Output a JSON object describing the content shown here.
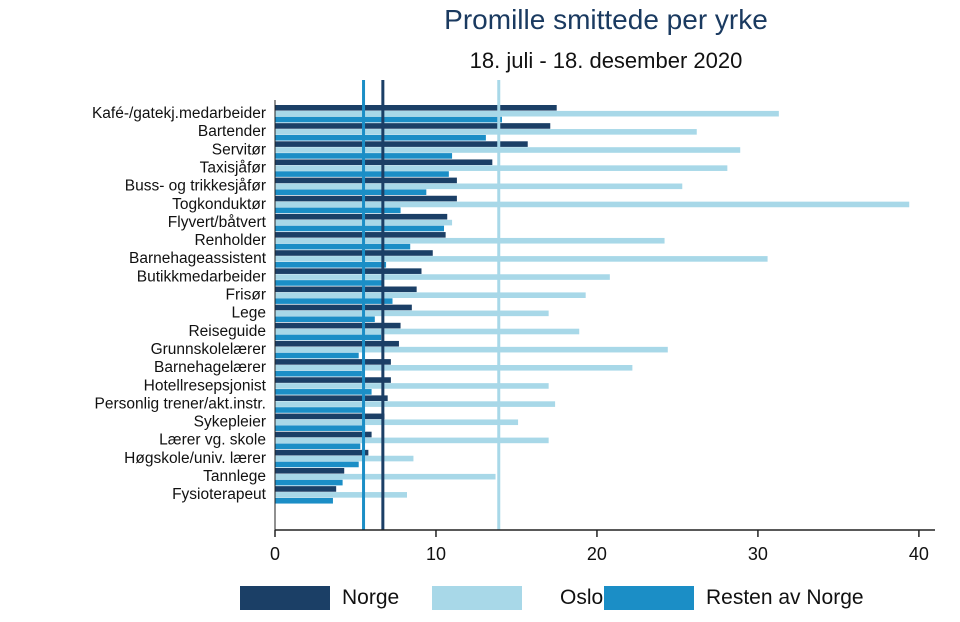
{
  "chart_data": {
    "type": "bar",
    "orientation": "horizontal",
    "title": "Promille smittede per yrke",
    "subtitle": "18. juli - 18. desember 2020",
    "xlabel": "",
    "ylabel": "",
    "xlim": [
      0,
      41
    ],
    "xticks": [
      0,
      10,
      20,
      30,
      40
    ],
    "categories": [
      "Kafé-/gatekj.medarbeider",
      "Bartender",
      "Servitør",
      "Taxisjåfør",
      "Buss- og trikkesjåfør",
      "Togkonduktør",
      "Flyvert/båtvert",
      "Renholder",
      "Barnehageassistent",
      "Butikkmedarbeider",
      "Frisør",
      "Lege",
      "Reiseguide",
      "Grunnskolelærer",
      "Barnehagelærer",
      "Hotellresepsjonist",
      "Personlig trener/akt.instr.",
      "Sykepleier",
      "Lærer vg. skole",
      "Høgskole/univ. lærer",
      "Tannlege",
      "Fysioterapeut"
    ],
    "series": [
      {
        "name": "Norge",
        "color": "#1b3f66",
        "values": [
          17.5,
          17.1,
          15.7,
          13.5,
          11.3,
          11.3,
          10.7,
          10.6,
          9.8,
          9.1,
          8.8,
          8.5,
          7.8,
          7.7,
          7.2,
          7.2,
          7.0,
          6.8,
          6.0,
          5.8,
          4.3,
          3.8
        ]
      },
      {
        "name": "Oslo",
        "color": "#a8d8e8",
        "values": [
          31.3,
          26.2,
          28.9,
          28.1,
          25.3,
          39.4,
          11.0,
          24.2,
          30.6,
          20.8,
          19.3,
          17.0,
          18.9,
          24.4,
          22.2,
          17.0,
          17.4,
          15.1,
          17.0,
          8.6,
          13.7,
          8.2
        ]
      },
      {
        "name": "Resten av Norge",
        "color": "#1b8ec6",
        "values": [
          14.1,
          13.1,
          11.0,
          10.8,
          9.4,
          7.8,
          10.5,
          8.4,
          6.9,
          6.7,
          7.3,
          6.2,
          6.6,
          5.2,
          5.4,
          6.0,
          5.5,
          5.6,
          5.3,
          5.2,
          4.2,
          3.6
        ]
      }
    ],
    "reference_lines": [
      {
        "series": "Norge",
        "value": 6.7,
        "color": "#1b3f66"
      },
      {
        "series": "Oslo",
        "value": 13.9,
        "color": "#a8d8e8"
      },
      {
        "series": "Resten av Norge",
        "value": 5.5,
        "color": "#1b8ec6"
      }
    ],
    "grid": false,
    "legend_position": "bottom"
  }
}
